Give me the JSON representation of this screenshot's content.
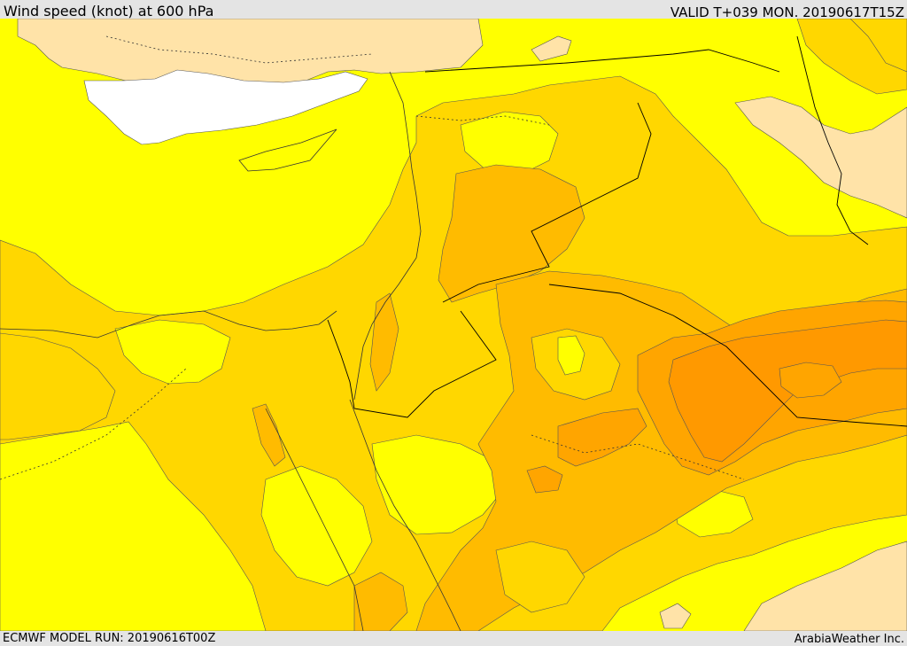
{
  "header": {
    "title": "Wind speed (knot) at 600 hPa",
    "valid": "VALID T+039 MON. 20190617T15Z"
  },
  "footer": {
    "model_run": "ECMWF MODEL RUN: 20190616T00Z",
    "credit": "ArabiaWeather Inc."
  },
  "map": {
    "field": "wind speed at 600 hPa",
    "colors": {
      "calm": "#ffe3a8",
      "light": "#ffff00",
      "moderate": "#ffd700",
      "strong": "#ffbb00",
      "stronger": "#ffa500",
      "strongest": "#ff9900",
      "sea_white": "#ffffff"
    }
  }
}
